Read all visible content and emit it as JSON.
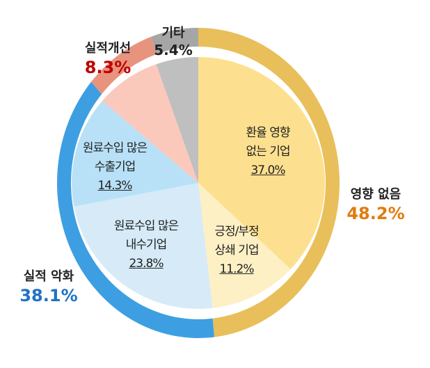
{
  "chart_data": {
    "type": "pie",
    "inner": {
      "slices": [
        {
          "label": "환율 영향 없는 기업",
          "lines": [
            "환율 영향",
            "없는 기업"
          ],
          "value": 37.0,
          "display": "37.0%",
          "color": "#fde08f"
        },
        {
          "label": "긍정/부정 상쇄 기업",
          "lines": [
            "긍정/부정",
            "상쇄 기업"
          ],
          "value": 11.2,
          "display": "11.2%",
          "color": "#fdf0c4"
        },
        {
          "label": "원료수입 많은 내수기업",
          "lines": [
            "원료수입 많은",
            "내수기업"
          ],
          "value": 23.8,
          "display": "23.8%",
          "color": "#d6ebf7"
        },
        {
          "label": "원료수입 많은 수출기업",
          "lines": [
            "원료수입 많은",
            "수출기업"
          ],
          "value": 14.3,
          "display": "14.3%",
          "color": "#b8e1f7"
        },
        {
          "label": "",
          "value": 8.3,
          "color": "#fbc8bc"
        },
        {
          "label": "",
          "value": 5.4,
          "color": "#bfbfbf"
        }
      ]
    },
    "outer": {
      "slices": [
        {
          "label": "영향 없음",
          "value": 48.2,
          "display": "48.2%",
          "color": "#e8bf5a",
          "text_color": "#e07b10"
        },
        {
          "label": "실적 악화",
          "value": 38.1,
          "display": "38.1%",
          "color": "#3d9fe2",
          "text_color": "#1f72c4"
        },
        {
          "label": "실적개선",
          "value": 8.3,
          "display": "8.3%",
          "color": "#e8937e",
          "text_color": "#c00000"
        },
        {
          "label": "기타",
          "value": 5.4,
          "display": "5.4%",
          "color": "#a6a6a6",
          "text_color": "#222222"
        }
      ]
    },
    "start": "top",
    "direction": "clockwise"
  }
}
